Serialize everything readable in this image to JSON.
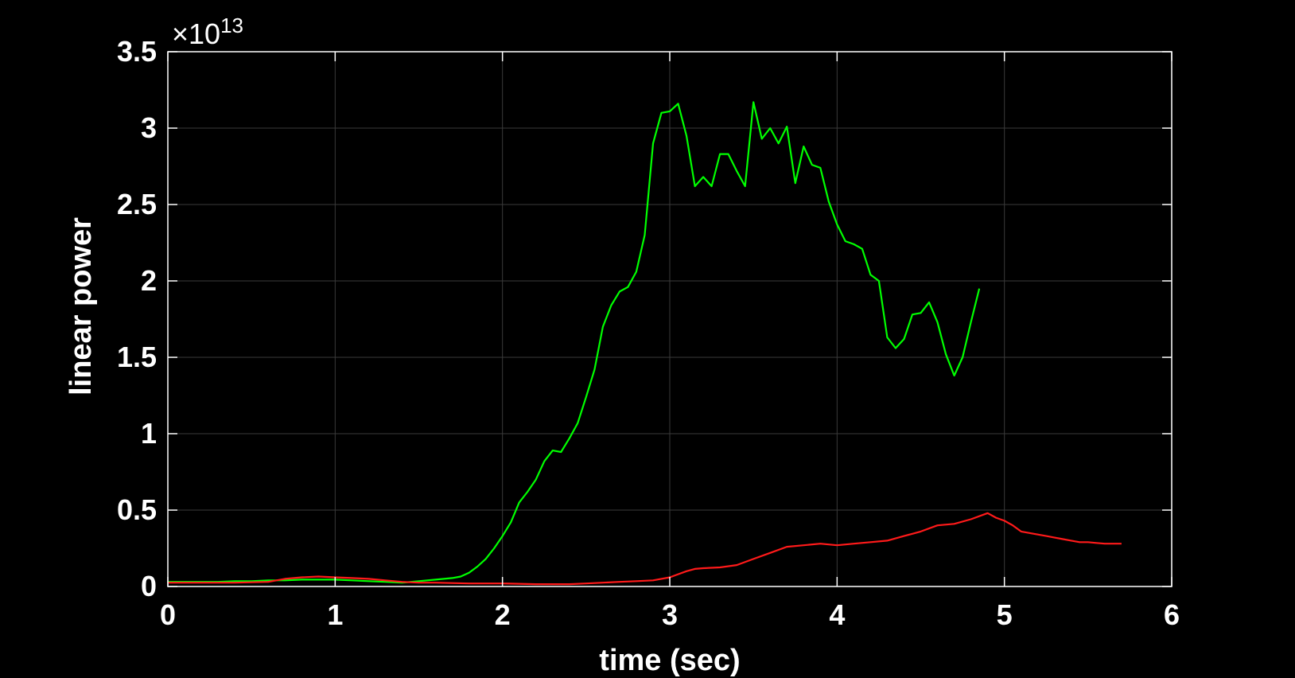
{
  "chart_data": {
    "type": "line",
    "xlabel": "time (sec)",
    "ylabel": "linear power",
    "y_exponent_label": "×10",
    "y_exponent_power": "13",
    "xlim": [
      0,
      6
    ],
    "ylim": [
      0,
      3.5
    ],
    "x_ticks": [
      "0",
      "1",
      "2",
      "3",
      "4",
      "5",
      "6"
    ],
    "y_ticks": [
      "0",
      "0.5",
      "1",
      "1.5",
      "2",
      "2.5",
      "3",
      "3.5"
    ],
    "grid": true,
    "background": "#000000",
    "axes_color": "#ffffff",
    "grid_color": "#3a3a3a",
    "series": [
      {
        "color": "#00ff00",
        "points": [
          [
            0,
            0.03
          ],
          [
            0.1,
            0.03
          ],
          [
            0.2,
            0.03
          ],
          [
            0.3,
            0.03
          ],
          [
            0.4,
            0.035
          ],
          [
            0.5,
            0.035
          ],
          [
            0.6,
            0.04
          ],
          [
            0.7,
            0.04
          ],
          [
            0.8,
            0.045
          ],
          [
            0.9,
            0.045
          ],
          [
            1.0,
            0.045
          ],
          [
            1.1,
            0.04
          ],
          [
            1.2,
            0.035
          ],
          [
            1.3,
            0.03
          ],
          [
            1.4,
            0.025
          ],
          [
            1.5,
            0.035
          ],
          [
            1.6,
            0.045
          ],
          [
            1.7,
            0.055
          ],
          [
            1.75,
            0.065
          ],
          [
            1.8,
            0.09
          ],
          [
            1.85,
            0.13
          ],
          [
            1.9,
            0.18
          ],
          [
            1.95,
            0.25
          ],
          [
            2.0,
            0.33
          ],
          [
            2.05,
            0.42
          ],
          [
            2.1,
            0.55
          ],
          [
            2.15,
            0.62
          ],
          [
            2.2,
            0.7
          ],
          [
            2.25,
            0.82
          ],
          [
            2.3,
            0.89
          ],
          [
            2.35,
            0.88
          ],
          [
            2.4,
            0.97
          ],
          [
            2.45,
            1.07
          ],
          [
            2.5,
            1.24
          ],
          [
            2.55,
            1.42
          ],
          [
            2.6,
            1.7
          ],
          [
            2.65,
            1.84
          ],
          [
            2.7,
            1.93
          ],
          [
            2.75,
            1.96
          ],
          [
            2.8,
            2.06
          ],
          [
            2.85,
            2.3
          ],
          [
            2.9,
            2.9
          ],
          [
            2.95,
            3.1
          ],
          [
            3.0,
            3.11
          ],
          [
            3.05,
            3.16
          ],
          [
            3.1,
            2.95
          ],
          [
            3.15,
            2.62
          ],
          [
            3.2,
            2.68
          ],
          [
            3.25,
            2.62
          ],
          [
            3.3,
            2.83
          ],
          [
            3.35,
            2.83
          ],
          [
            3.4,
            2.72
          ],
          [
            3.45,
            2.62
          ],
          [
            3.5,
            3.17
          ],
          [
            3.55,
            2.93
          ],
          [
            3.6,
            3.0
          ],
          [
            3.65,
            2.9
          ],
          [
            3.7,
            3.01
          ],
          [
            3.75,
            2.64
          ],
          [
            3.8,
            2.88
          ],
          [
            3.85,
            2.76
          ],
          [
            3.9,
            2.74
          ],
          [
            3.95,
            2.52
          ],
          [
            4.0,
            2.37
          ],
          [
            4.05,
            2.26
          ],
          [
            4.1,
            2.24
          ],
          [
            4.15,
            2.21
          ],
          [
            4.2,
            2.04
          ],
          [
            4.25,
            2.0
          ],
          [
            4.3,
            1.63
          ],
          [
            4.35,
            1.56
          ],
          [
            4.4,
            1.62
          ],
          [
            4.45,
            1.78
          ],
          [
            4.5,
            1.79
          ],
          [
            4.55,
            1.86
          ],
          [
            4.6,
            1.73
          ],
          [
            4.65,
            1.52
          ],
          [
            4.7,
            1.38
          ],
          [
            4.75,
            1.5
          ],
          [
            4.8,
            1.73
          ],
          [
            4.85,
            1.95
          ]
        ]
      },
      {
        "color": "#ff1a1a",
        "points": [
          [
            0,
            0.025
          ],
          [
            0.2,
            0.025
          ],
          [
            0.4,
            0.025
          ],
          [
            0.6,
            0.03
          ],
          [
            0.7,
            0.05
          ],
          [
            0.8,
            0.06
          ],
          [
            0.9,
            0.065
          ],
          [
            1.0,
            0.06
          ],
          [
            1.1,
            0.055
          ],
          [
            1.2,
            0.05
          ],
          [
            1.3,
            0.04
          ],
          [
            1.4,
            0.03
          ],
          [
            1.5,
            0.025
          ],
          [
            1.6,
            0.025
          ],
          [
            1.8,
            0.02
          ],
          [
            2.0,
            0.02
          ],
          [
            2.2,
            0.015
          ],
          [
            2.4,
            0.015
          ],
          [
            2.5,
            0.02
          ],
          [
            2.6,
            0.025
          ],
          [
            2.7,
            0.03
          ],
          [
            2.8,
            0.035
          ],
          [
            2.9,
            0.04
          ],
          [
            3.0,
            0.06
          ],
          [
            3.05,
            0.08
          ],
          [
            3.1,
            0.1
          ],
          [
            3.15,
            0.115
          ],
          [
            3.2,
            0.12
          ],
          [
            3.3,
            0.125
          ],
          [
            3.4,
            0.14
          ],
          [
            3.5,
            0.18
          ],
          [
            3.6,
            0.22
          ],
          [
            3.7,
            0.26
          ],
          [
            3.8,
            0.27
          ],
          [
            3.9,
            0.28
          ],
          [
            4.0,
            0.27
          ],
          [
            4.1,
            0.28
          ],
          [
            4.2,
            0.29
          ],
          [
            4.3,
            0.3
          ],
          [
            4.4,
            0.33
          ],
          [
            4.5,
            0.36
          ],
          [
            4.6,
            0.4
          ],
          [
            4.7,
            0.41
          ],
          [
            4.8,
            0.44
          ],
          [
            4.9,
            0.48
          ],
          [
            4.95,
            0.45
          ],
          [
            5.0,
            0.43
          ],
          [
            5.05,
            0.4
          ],
          [
            5.1,
            0.36
          ],
          [
            5.15,
            0.35
          ],
          [
            5.2,
            0.34
          ],
          [
            5.25,
            0.33
          ],
          [
            5.3,
            0.32
          ],
          [
            5.35,
            0.31
          ],
          [
            5.4,
            0.3
          ],
          [
            5.45,
            0.29
          ],
          [
            5.5,
            0.29
          ],
          [
            5.55,
            0.285
          ],
          [
            5.6,
            0.28
          ],
          [
            5.65,
            0.28
          ],
          [
            5.7,
            0.28
          ]
        ]
      }
    ]
  }
}
